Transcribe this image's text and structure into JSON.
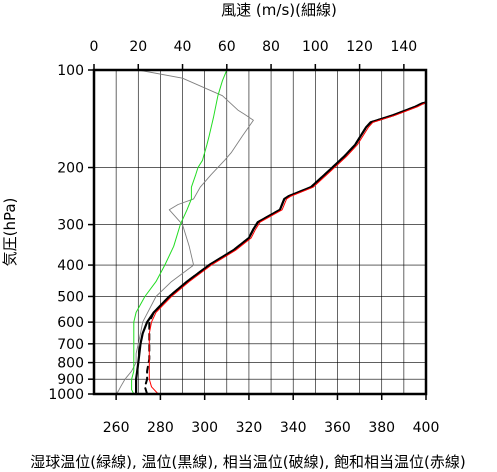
{
  "chart_data": {
    "type": "line",
    "top_axis_title": "風速 (m/s)(細線)",
    "y_axis_title": "気圧(hPa)",
    "bottom_caption": "湿球温位(緑線), 温位(黒線), 相当温位(破線), 飽和相当温位(赤線)",
    "y_scale": "log",
    "y_reversed": true,
    "grid": true,
    "ylim": [
      1000,
      100
    ],
    "y_ticks": [
      100,
      200,
      300,
      400,
      500,
      600,
      700,
      800,
      900,
      1000
    ],
    "y_tick_labels": [
      "100",
      "200",
      "300",
      "400",
      "500",
      "600",
      "700",
      "800",
      "900",
      "1000"
    ],
    "x_bottom": {
      "range": [
        250,
        400
      ],
      "ticks": [
        260,
        280,
        300,
        320,
        340,
        360,
        380,
        400
      ],
      "tick_labels": [
        "260",
        "280",
        "300",
        "320",
        "340",
        "360",
        "380",
        "400"
      ]
    },
    "x_top": {
      "range": [
        0,
        150
      ],
      "ticks": [
        0,
        20,
        40,
        60,
        80,
        100,
        120,
        140
      ],
      "tick_labels": [
        "0",
        "20",
        "40",
        "60",
        "80",
        "100",
        "120",
        "140"
      ]
    },
    "series": [
      {
        "key": "wind_speed",
        "axis": "top",
        "color": "#808080",
        "dash": false,
        "width": 0.9,
        "points": [
          [
            10,
            1000
          ],
          [
            11,
            980
          ],
          [
            12,
            950
          ],
          [
            14,
            900
          ],
          [
            17,
            850
          ],
          [
            19,
            800
          ],
          [
            19,
            750
          ],
          [
            20,
            700
          ],
          [
            21,
            650
          ],
          [
            22,
            600
          ],
          [
            28,
            500
          ],
          [
            35,
            450
          ],
          [
            45,
            400
          ],
          [
            43,
            350
          ],
          [
            40,
            300
          ],
          [
            34,
            270
          ],
          [
            38,
            260
          ],
          [
            45,
            250
          ],
          [
            48,
            230
          ],
          [
            53,
            210
          ],
          [
            59,
            190
          ],
          [
            62,
            180
          ],
          [
            67,
            160
          ],
          [
            72,
            143
          ],
          [
            68,
            137
          ],
          [
            65,
            133
          ],
          [
            58,
            120
          ],
          [
            40,
            106
          ],
          [
            20,
            100
          ]
        ]
      },
      {
        "key": "wet_bulb_potential_temperature",
        "axis": "bottom",
        "color": "#22dd22",
        "dash": false,
        "width": 1.0,
        "points": [
          [
            268,
            1000
          ],
          [
            267,
            970
          ],
          [
            267,
            900
          ],
          [
            268,
            850
          ],
          [
            268,
            800
          ],
          [
            268,
            720
          ],
          [
            268,
            650
          ],
          [
            268,
            600
          ],
          [
            269,
            560
          ],
          [
            273,
            500
          ],
          [
            278,
            450
          ],
          [
            282,
            400
          ],
          [
            286,
            350
          ],
          [
            289,
            300
          ],
          [
            292,
            270
          ],
          [
            294,
            250
          ],
          [
            294,
            230
          ],
          [
            296,
            210
          ],
          [
            297,
            200
          ],
          [
            299,
            190
          ],
          [
            301,
            170
          ],
          [
            302,
            160
          ],
          [
            304,
            140
          ],
          [
            306,
            120
          ],
          [
            308,
            108
          ],
          [
            310,
            100
          ]
        ]
      },
      {
        "key": "potential_temperature",
        "axis": "bottom",
        "color": "#000000",
        "dash": false,
        "width": 2.2,
        "points": [
          [
            269,
            1000
          ],
          [
            269,
            900
          ],
          [
            270,
            800
          ],
          [
            271,
            700
          ],
          [
            272,
            650
          ],
          [
            274,
            600
          ],
          [
            277,
            560
          ],
          [
            284,
            500
          ],
          [
            292,
            450
          ],
          [
            302,
            400
          ],
          [
            313,
            360
          ],
          [
            320,
            330
          ],
          [
            322,
            310
          ],
          [
            324,
            295
          ],
          [
            334,
            270
          ],
          [
            336,
            250
          ],
          [
            338,
            245
          ],
          [
            348,
            230
          ],
          [
            356,
            205
          ],
          [
            363,
            185
          ],
          [
            368,
            170
          ],
          [
            373,
            150
          ],
          [
            375,
            145
          ],
          [
            385,
            138
          ],
          [
            395,
            130
          ],
          [
            398,
            127
          ],
          [
            400,
            126
          ]
        ]
      },
      {
        "key": "equivalent_potential_temperature",
        "axis": "bottom",
        "color": "#000000",
        "dash": true,
        "width": 2.0,
        "points": [
          [
            274,
            1000
          ],
          [
            273,
            950
          ],
          [
            274,
            900
          ],
          [
            274,
            850
          ],
          [
            275,
            780
          ],
          [
            275,
            700
          ],
          [
            275,
            650
          ],
          [
            275,
            600
          ],
          [
            277,
            560
          ],
          [
            284,
            500
          ],
          [
            292,
            450
          ],
          [
            302,
            400
          ],
          [
            313,
            360
          ],
          [
            320,
            330
          ],
          [
            322,
            310
          ],
          [
            324,
            295
          ],
          [
            334,
            270
          ],
          [
            336,
            250
          ],
          [
            338,
            245
          ],
          [
            348,
            230
          ],
          [
            356,
            205
          ],
          [
            363,
            185
          ],
          [
            368,
            170
          ],
          [
            373,
            150
          ],
          [
            375,
            145
          ],
          [
            385,
            138
          ],
          [
            395,
            130
          ],
          [
            398,
            127
          ],
          [
            400,
            126
          ]
        ]
      },
      {
        "key": "saturated_equivalent_potential_temperature",
        "axis": "bottom",
        "color": "#ff0000",
        "dash": false,
        "width": 1.0,
        "points": [
          [
            279,
            1000
          ],
          [
            276,
            950
          ],
          [
            275,
            900
          ],
          [
            275,
            800
          ],
          [
            275,
            700
          ],
          [
            275,
            650
          ],
          [
            276,
            600
          ],
          [
            278,
            560
          ],
          [
            285,
            500
          ],
          [
            293,
            450
          ],
          [
            303,
            400
          ],
          [
            314,
            360
          ],
          [
            321,
            330
          ],
          [
            323,
            310
          ],
          [
            325,
            295
          ],
          [
            335,
            270
          ],
          [
            337,
            250
          ],
          [
            339,
            245
          ],
          [
            349,
            230
          ],
          [
            357,
            205
          ],
          [
            364,
            185
          ],
          [
            369,
            170
          ],
          [
            374,
            150
          ],
          [
            376,
            145
          ],
          [
            386,
            138
          ],
          [
            396,
            130
          ],
          [
            399,
            127
          ],
          [
            400,
            126
          ]
        ]
      }
    ]
  }
}
